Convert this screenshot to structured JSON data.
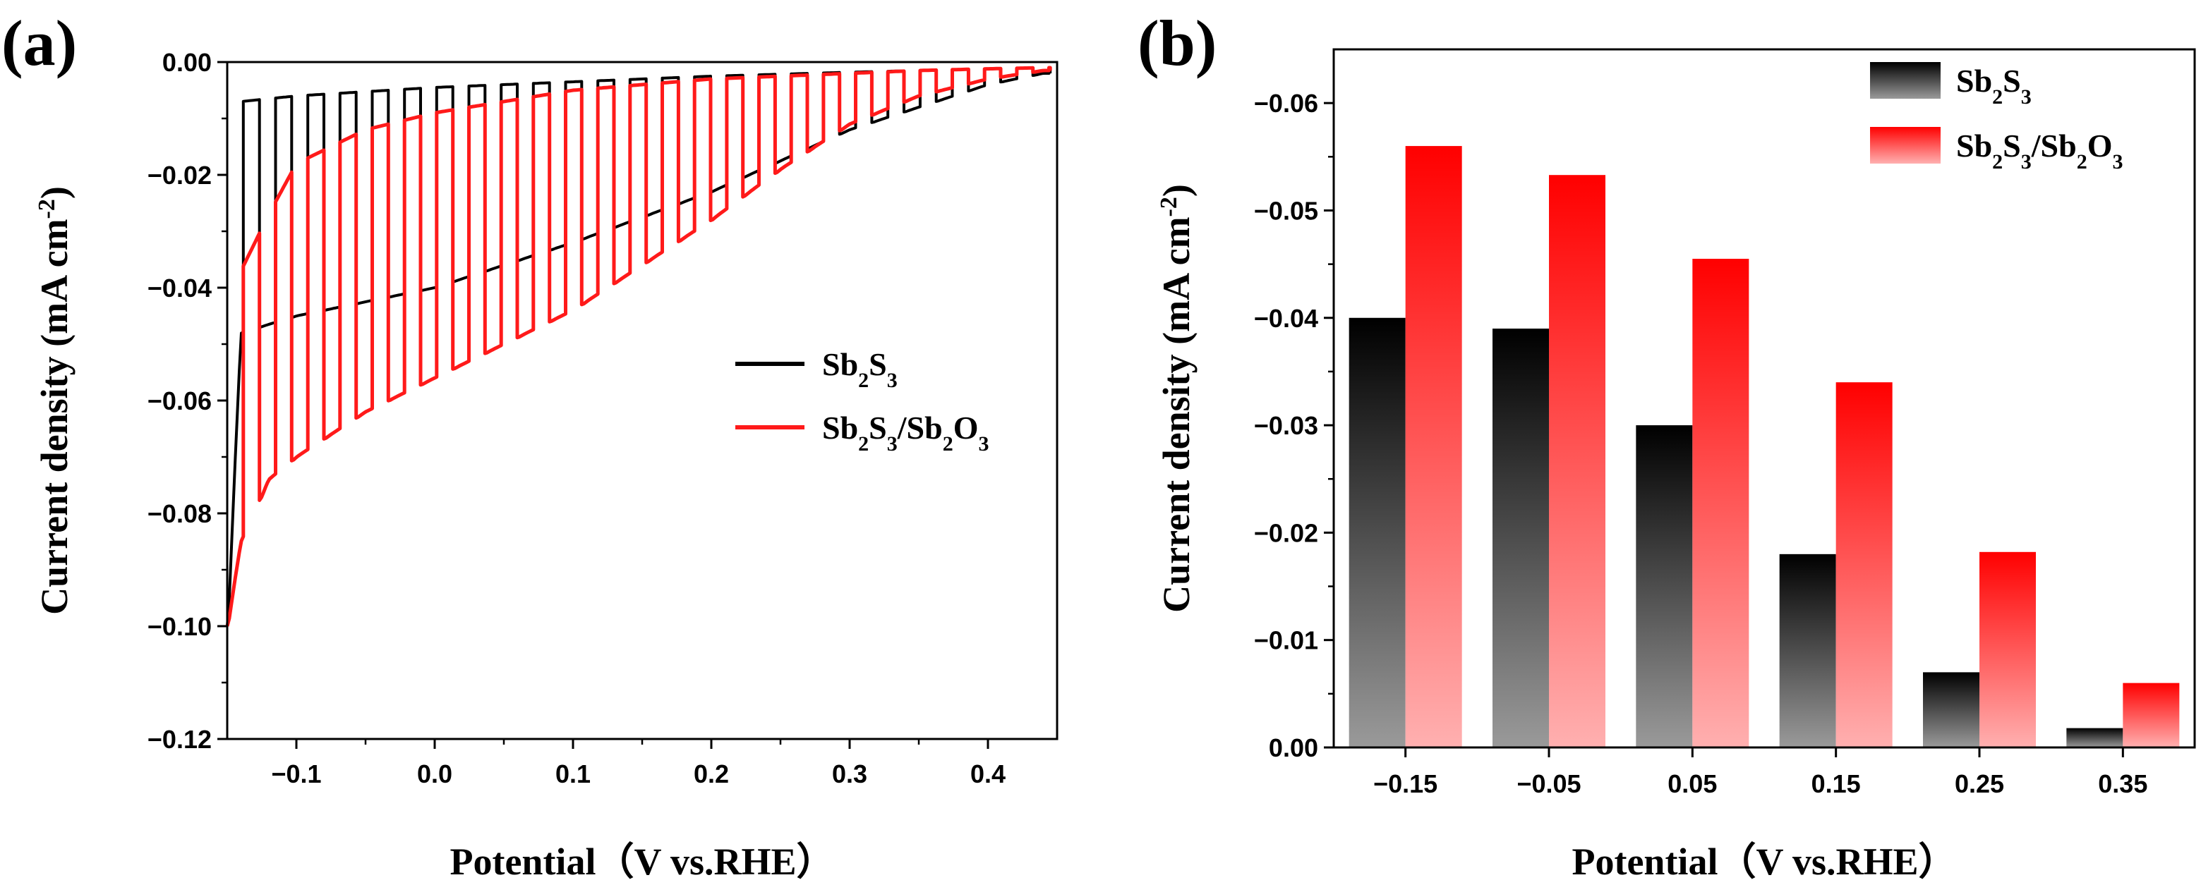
{
  "colors": {
    "sb2s3": "#000000",
    "sb2s3_sb2o3": "#ff1a1a",
    "bar_black_top": "#000000",
    "bar_black_bottom": "#9a9a9a",
    "bar_red_top": "#ff0000",
    "bar_red_bottom": "#ffb0b0"
  },
  "chart_data": [
    {
      "panel": "(a)",
      "type": "line",
      "title": "",
      "xlabel": "Potential（V vs.RHE）",
      "ylabel": "Current density (mA cm",
      "ylabel_sup": "-2",
      "ylabel_close": ")",
      "xlim": [
        -0.15,
        0.45
      ],
      "ylim": [
        -0.12,
        0.0
      ],
      "x_tick_values": [
        -0.1,
        0.0,
        0.1,
        0.2,
        0.3,
        0.4
      ],
      "x_tick_labels": [
        "−0.1",
        "0.0",
        "0.1",
        "0.2",
        "0.3",
        "0.4"
      ],
      "y_tick_values": [
        0.0,
        -0.02,
        -0.04,
        -0.06,
        -0.08,
        -0.1,
        -0.12
      ],
      "y_tick_labels": [
        "0.00",
        "−0.02",
        "−0.04",
        "−0.06",
        "−0.08",
        "−0.10",
        "−0.12"
      ],
      "chop_period_V": 0.0233,
      "series": [
        {
          "name": "Sb2S3",
          "legend_parts": [
            "Sb",
            "2",
            "S",
            "3"
          ],
          "color_key": "sb2s3",
          "light_envelope": {
            "x": [
              -0.15,
              -0.14,
              -0.1,
              0.0,
              0.1,
              0.2,
              0.3,
              0.4,
              0.44
            ],
            "y": [
              -0.1,
              -0.048,
              -0.045,
              -0.04,
              -0.032,
              -0.023,
              -0.012,
              -0.004,
              -0.002
            ]
          },
          "dark_envelope": {
            "x": [
              -0.15,
              -0.14,
              -0.1,
              0.0,
              0.1,
              0.2,
              0.3,
              0.4,
              0.44
            ],
            "y": [
              -0.04,
              -0.007,
              -0.006,
              -0.0045,
              -0.0035,
              -0.0025,
              -0.0018,
              -0.0012,
              -0.001
            ]
          }
        },
        {
          "name": "Sb2S3/Sb2O3",
          "legend_parts": [
            "Sb",
            "2",
            "S",
            "3",
            "/Sb",
            "2",
            "O",
            "3"
          ],
          "color_key": "sb2s3_sb2o3",
          "light_envelope": {
            "x": [
              -0.15,
              -0.14,
              -0.12,
              -0.1,
              -0.05,
              0.0,
              0.05,
              0.1,
              0.15,
              0.2,
              0.25,
              0.3,
              0.35,
              0.4,
              0.44
            ],
            "y": [
              -0.1,
              -0.085,
              -0.074,
              -0.07,
              -0.062,
              -0.056,
              -0.05,
              -0.044,
              -0.036,
              -0.028,
              -0.019,
              -0.011,
              -0.006,
              -0.003,
              -0.0015
            ]
          },
          "dark_envelope": {
            "x": [
              -0.15,
              -0.14,
              -0.12,
              -0.1,
              -0.05,
              0.0,
              0.05,
              0.1,
              0.15,
              0.2,
              0.25,
              0.3,
              0.35,
              0.4,
              0.44
            ],
            "y": [
              -0.045,
              -0.037,
              -0.027,
              -0.018,
              -0.012,
              -0.009,
              -0.007,
              -0.005,
              -0.004,
              -0.003,
              -0.0025,
              -0.002,
              -0.0015,
              -0.0012,
              -0.001
            ]
          }
        }
      ]
    },
    {
      "panel": "(b)",
      "type": "bar",
      "title": "",
      "xlabel": "Potential（V vs.RHE）",
      "ylabel": "Current density (mA cm",
      "ylabel_sup": "-2",
      "ylabel_close": ")",
      "categories": [
        "−0.15",
        "−0.05",
        "0.05",
        "0.15",
        "0.25",
        "0.35"
      ],
      "ylim": [
        0.0,
        -0.065
      ],
      "y_tick_values": [
        0.0,
        -0.01,
        -0.02,
        -0.03,
        -0.04,
        -0.05,
        -0.06
      ],
      "y_tick_labels": [
        "0.00",
        "−0.01",
        "−0.02",
        "−0.03",
        "−0.04",
        "−0.05",
        "−0.06"
      ],
      "series": [
        {
          "name": "Sb2S3",
          "legend_parts": [
            "Sb",
            "2",
            "S",
            "3"
          ],
          "color_key": "sb2s3",
          "values": [
            -0.04,
            -0.039,
            -0.03,
            -0.018,
            -0.007,
            -0.0018
          ]
        },
        {
          "name": "Sb2S3/Sb2O3",
          "legend_parts": [
            "Sb",
            "2",
            "S",
            "3",
            "/Sb",
            "2",
            "O",
            "3"
          ],
          "color_key": "sb2s3_sb2o3",
          "values": [
            -0.056,
            -0.0533,
            -0.0455,
            -0.034,
            -0.0182,
            -0.006
          ]
        }
      ]
    }
  ]
}
